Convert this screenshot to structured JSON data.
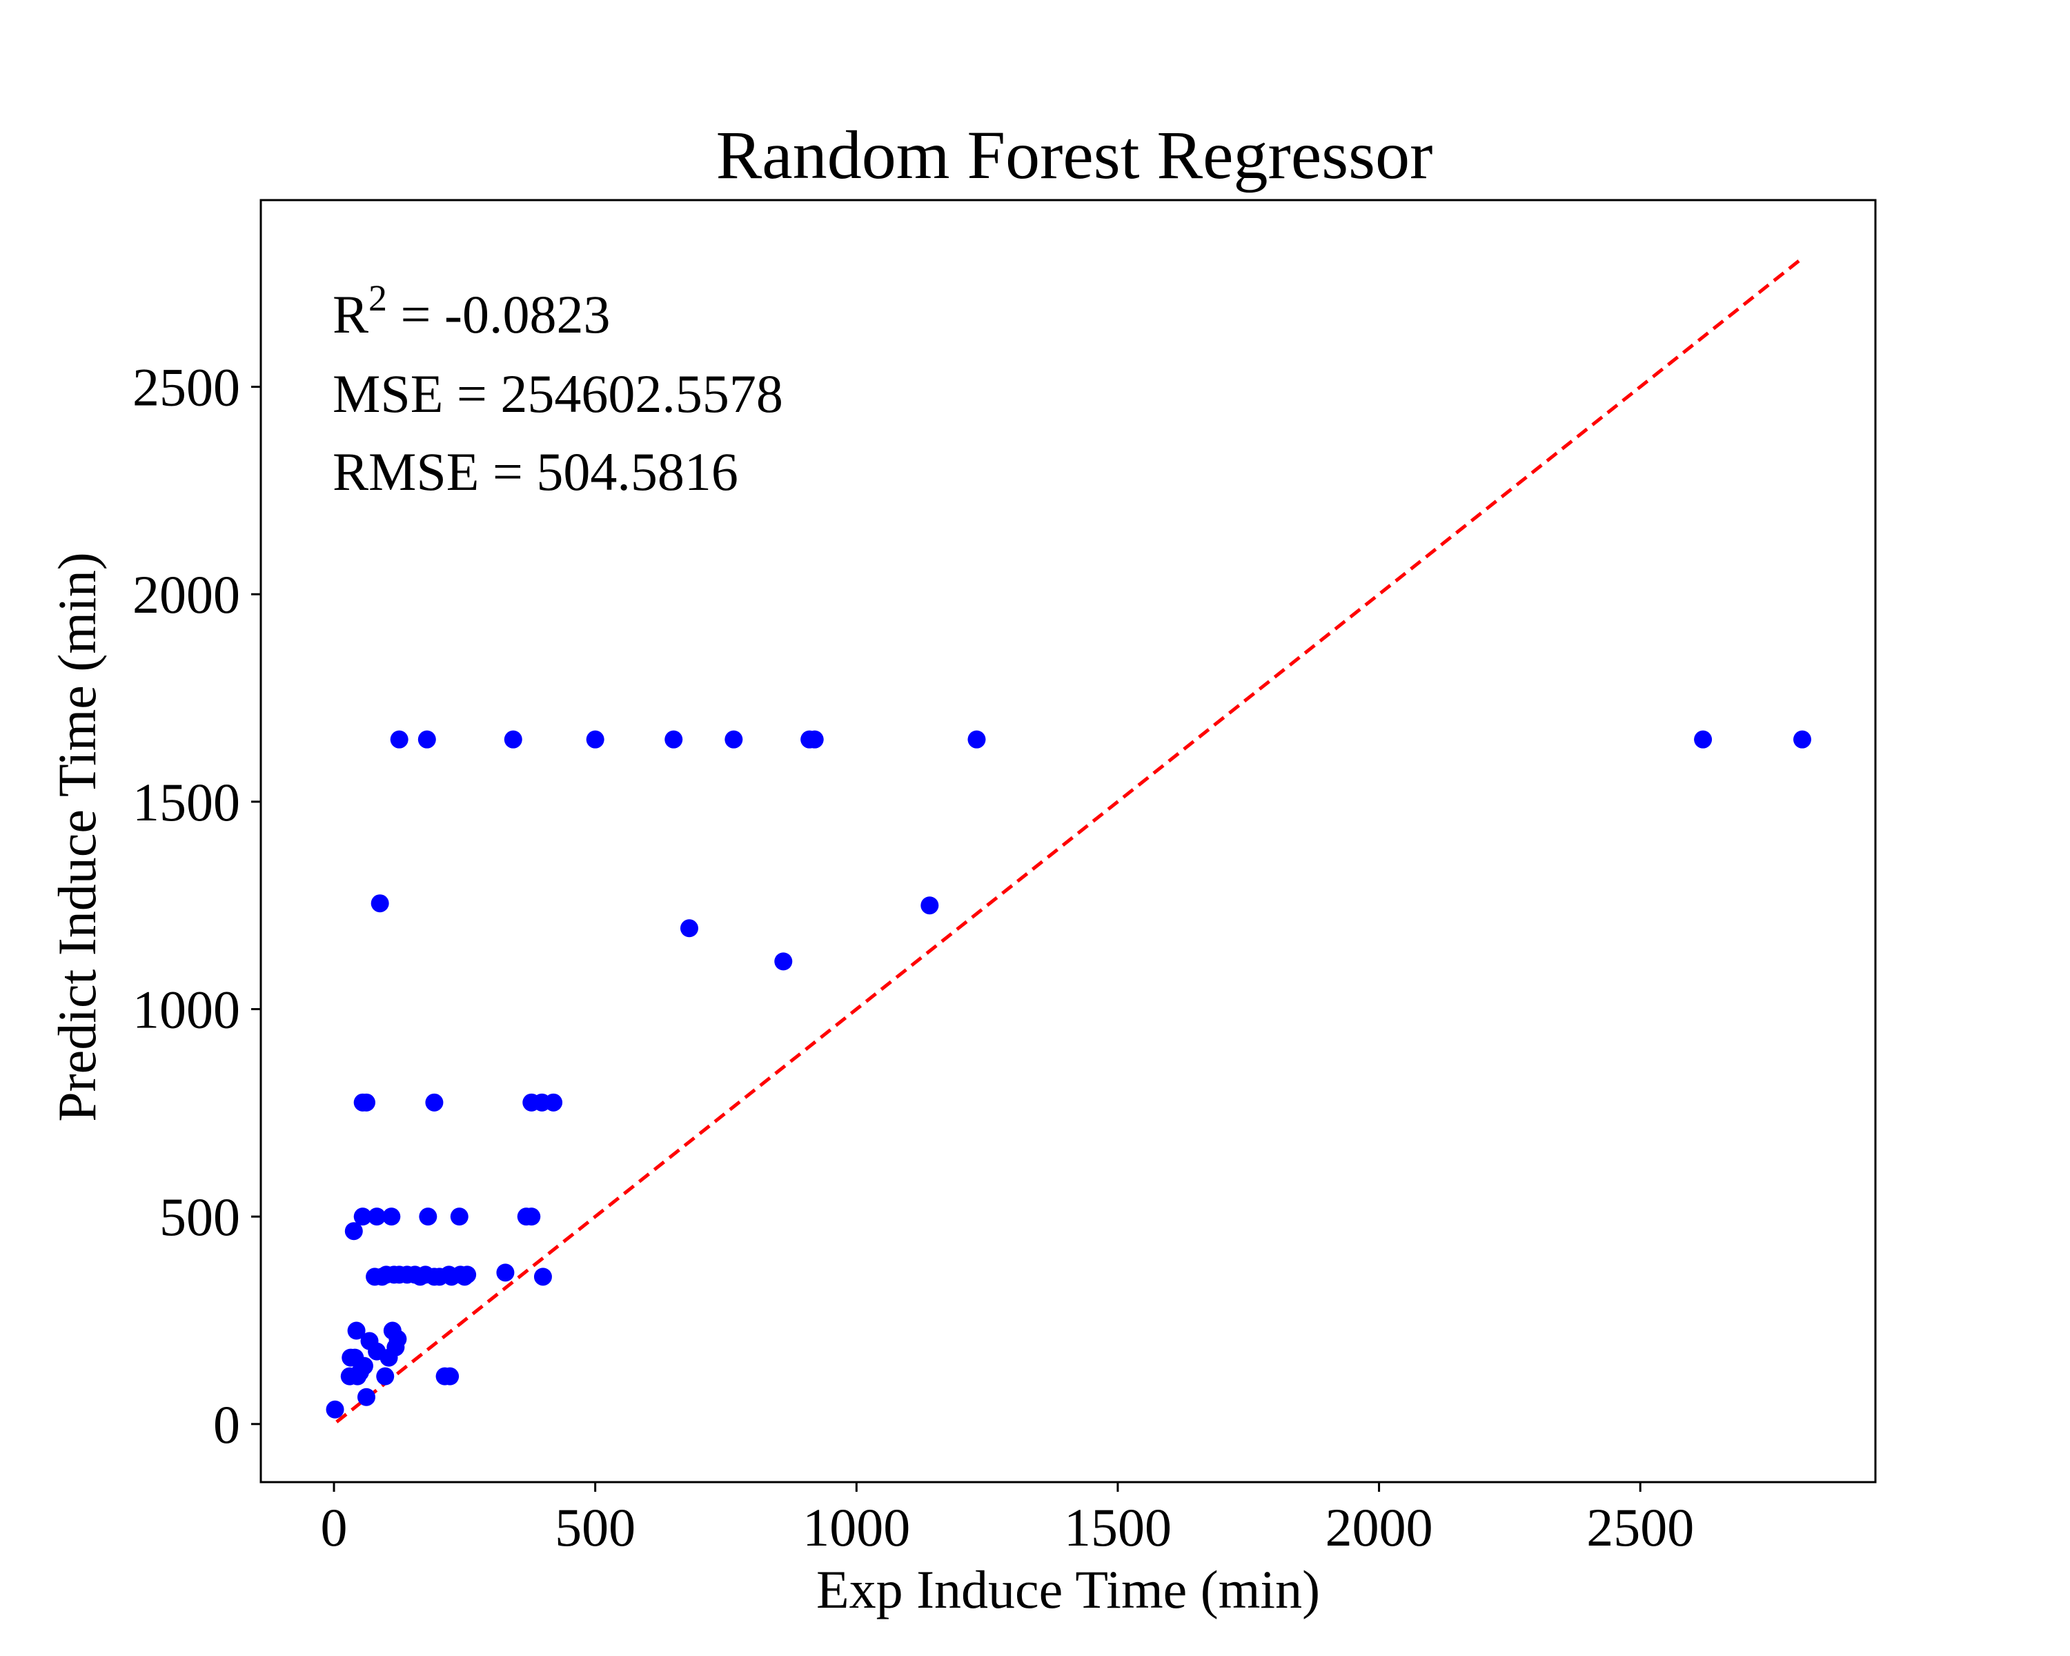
{
  "chart_data": {
    "type": "scatter",
    "title": "Random Forest Regressor",
    "xlabel": "Exp Induce Time (min)",
    "ylabel": "Predict Induce Time (min)",
    "xlim": [
      -140,
      2950
    ],
    "ylim": [
      -140,
      2950
    ],
    "xticks": [
      0,
      500,
      1000,
      1500,
      2000,
      2500
    ],
    "yticks": [
      0,
      500,
      1000,
      1500,
      2000,
      2500
    ],
    "grid": false,
    "annotations": {
      "r2_base": "R",
      "r2_sup": "2",
      "r2_rest": " = -0.0823",
      "mse": "MSE = 254602.5578",
      "rmse": "RMSE = 504.5816"
    },
    "reference_line": {
      "x": [
        5,
        2810
      ],
      "y": [
        5,
        2810
      ],
      "color": "#ff0000",
      "style": "dashed"
    },
    "marker_color": "#0000ff",
    "points": [
      [
        2,
        35
      ],
      [
        30,
        115
      ],
      [
        32,
        160
      ],
      [
        38,
        465
      ],
      [
        40,
        160
      ],
      [
        43,
        225
      ],
      [
        45,
        115
      ],
      [
        50,
        125
      ],
      [
        55,
        775
      ],
      [
        55,
        500
      ],
      [
        58,
        140
      ],
      [
        62,
        65
      ],
      [
        62,
        775
      ],
      [
        68,
        200
      ],
      [
        78,
        355
      ],
      [
        82,
        500
      ],
      [
        82,
        175
      ],
      [
        88,
        1255
      ],
      [
        92,
        355
      ],
      [
        98,
        115
      ],
      [
        100,
        360
      ],
      [
        105,
        160
      ],
      [
        110,
        500
      ],
      [
        112,
        225
      ],
      [
        115,
        360
      ],
      [
        118,
        185
      ],
      [
        122,
        205
      ],
      [
        125,
        360
      ],
      [
        125,
        1650
      ],
      [
        140,
        360
      ],
      [
        155,
        360
      ],
      [
        165,
        355
      ],
      [
        175,
        360
      ],
      [
        178,
        1650
      ],
      [
        180,
        500
      ],
      [
        192,
        355
      ],
      [
        192,
        775
      ],
      [
        202,
        355
      ],
      [
        212,
        115
      ],
      [
        220,
        360
      ],
      [
        222,
        115
      ],
      [
        225,
        355
      ],
      [
        240,
        500
      ],
      [
        242,
        360
      ],
      [
        250,
        355
      ],
      [
        255,
        360
      ],
      [
        328,
        365
      ],
      [
        343,
        1650
      ],
      [
        368,
        500
      ],
      [
        378,
        500
      ],
      [
        378,
        775
      ],
      [
        398,
        775
      ],
      [
        400,
        355
      ],
      [
        420,
        775
      ],
      [
        500,
        1650
      ],
      [
        650,
        1650
      ],
      [
        680,
        1195
      ],
      [
        765,
        1650
      ],
      [
        860,
        1115
      ],
      [
        910,
        1650
      ],
      [
        920,
        1650
      ],
      [
        1140,
        1250
      ],
      [
        1230,
        1650
      ],
      [
        2620,
        1650
      ],
      [
        2810,
        1650
      ]
    ]
  }
}
